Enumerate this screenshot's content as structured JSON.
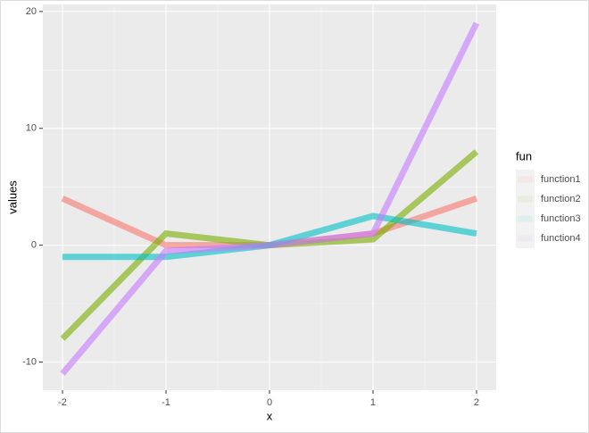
{
  "chart_data": {
    "type": "line",
    "x": [
      -2,
      -1,
      0,
      1,
      2
    ],
    "series": [
      {
        "name": "function1",
        "color": "#F8766D",
        "values": [
          4,
          0,
          0,
          1,
          4
        ]
      },
      {
        "name": "function2",
        "color": "#7CAE00",
        "values": [
          -8,
          1,
          0,
          0.5,
          8
        ]
      },
      {
        "name": "function3",
        "color": "#00BFC4",
        "values": [
          -1,
          -1,
          0,
          2.5,
          1
        ]
      },
      {
        "name": "function4",
        "color": "#C77CFF",
        "values": [
          -11,
          -0.5,
          0,
          1,
          19
        ]
      }
    ],
    "x_label": "x",
    "y_label": "values",
    "legend_title": "fun",
    "legend": "right",
    "xlim": [
      -2.19,
      2.19
    ],
    "ylim": [
      -12.4,
      20.6
    ],
    "xticks": [
      -2,
      -1,
      0,
      1,
      2
    ],
    "yticks": [
      -10,
      0,
      10,
      20
    ],
    "grid": true
  }
}
